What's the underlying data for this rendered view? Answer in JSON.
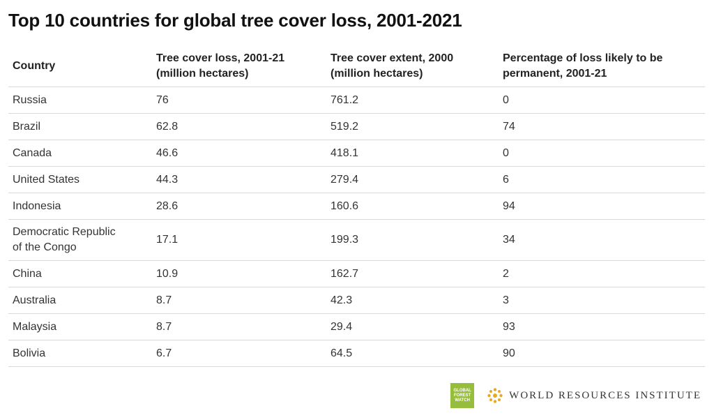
{
  "title": "Top 10 countries for global tree cover loss, 2001-2021",
  "chart_data": {
    "type": "table",
    "columns": [
      {
        "label": "Country"
      },
      {
        "label": "Tree cover loss, 2001-21 (million hectares)"
      },
      {
        "label": "Tree cover extent, 2000 (million hectares)"
      },
      {
        "label": "Percentage of loss likely to be permanent, 2001-21"
      }
    ],
    "rows": [
      [
        "Russia",
        "76",
        "761.2",
        "0"
      ],
      [
        "Brazil",
        "62.8",
        "519.2",
        "74"
      ],
      [
        "Canada",
        "46.6",
        "418.1",
        "0"
      ],
      [
        "United States",
        "44.3",
        "279.4",
        "6"
      ],
      [
        "Indonesia",
        "28.6",
        "160.6",
        "94"
      ],
      [
        "Democratic Republic of the Congo",
        "17.1",
        "199.3",
        "34"
      ],
      [
        "China",
        "10.9",
        "162.7",
        "2"
      ],
      [
        "Australia",
        "8.7",
        "42.3",
        "3"
      ],
      [
        "Malaysia",
        "8.7",
        "29.4",
        "93"
      ],
      [
        "Bolivia",
        "6.7",
        "64.5",
        "90"
      ]
    ]
  },
  "footer": {
    "gfw_logo_text": [
      "GLOBAL",
      "FOREST",
      "WATCH"
    ],
    "wri_name": "WORLD RESOURCES INSTITUTE",
    "gfw_color": "#97bd3d",
    "wri_logo_color": "#e8a820"
  }
}
